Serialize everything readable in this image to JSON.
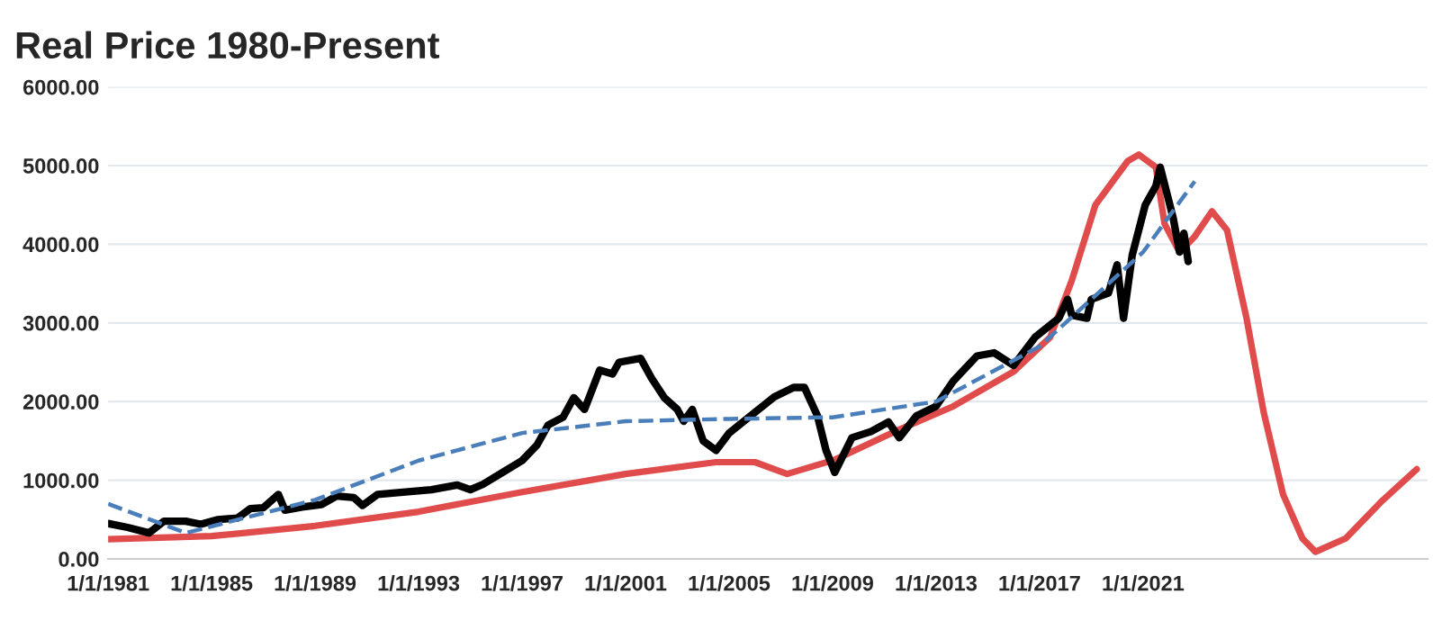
{
  "chart_data": {
    "type": "line",
    "title": "Real Price 1980-Present",
    "xlim": [
      "1981-01-01",
      "2032-01-01"
    ],
    "xticks": [
      {
        "value": "1981-01-01",
        "label": "1/1/1981"
      },
      {
        "value": "1985-01-01",
        "label": "1/1/1985"
      },
      {
        "value": "1989-01-01",
        "label": "1/1/1989"
      },
      {
        "value": "1993-01-01",
        "label": "1/1/1993"
      },
      {
        "value": "1997-01-01",
        "label": "1/1/1997"
      },
      {
        "value": "2001-01-01",
        "label": "1/1/2001"
      },
      {
        "value": "2005-01-01",
        "label": "1/1/2005"
      },
      {
        "value": "2009-01-01",
        "label": "1/1/2009"
      },
      {
        "value": "2013-01-01",
        "label": "1/1/2013"
      },
      {
        "value": "2017-01-01",
        "label": "1/1/2017"
      },
      {
        "value": "2021-01-01",
        "label": "1/1/2021"
      }
    ],
    "ylim": [
      0,
      6000
    ],
    "yticks": [
      {
        "value": 0,
        "label": "0.00"
      },
      {
        "value": 1000,
        "label": "1000.00"
      },
      {
        "value": 2000,
        "label": "2000.00"
      },
      {
        "value": 3000,
        "label": "3000.00"
      },
      {
        "value": 4000,
        "label": "4000.00"
      },
      {
        "value": 5000,
        "label": "5000.00"
      },
      {
        "value": 6000,
        "label": "6000.00"
      }
    ],
    "grid": "y",
    "series": [
      {
        "color": "#e04b4b",
        "line_style": "solid",
        "x": [
          "1981-01",
          "1985-01",
          "1989-01",
          "1993-01",
          "1997-01",
          "2001-01",
          "2004-07",
          "2006-01",
          "2007-04",
          "2009-02",
          "2011-06",
          "2013-09",
          "2016-01",
          "2017-06",
          "2018-04",
          "2019-03",
          "2020-06",
          "2020-11",
          "2021-07",
          "2021-11",
          "2022-06",
          "2023-01",
          "2023-09",
          "2024-04",
          "2025-01",
          "2025-09",
          "2026-06",
          "2027-03",
          "2027-09",
          "2028-11",
          "2030-04",
          "2031-08"
        ],
        "values": [
          250,
          290,
          420,
          600,
          850,
          1080,
          1230,
          1230,
          1080,
          1260,
          1620,
          1940,
          2380,
          2820,
          3540,
          4500,
          5060,
          5140,
          4980,
          4260,
          3900,
          4100,
          4420,
          4180,
          3060,
          1860,
          820,
          260,
          90,
          260,
          740,
          1140
        ]
      },
      {
        "color": "#000000",
        "line_style": "solid",
        "x": [
          "1981-01",
          "1981-10",
          "1982-08",
          "1983-03",
          "1984-01",
          "1984-08",
          "1985-04",
          "1986-01",
          "1986-07",
          "1987-01",
          "1987-08",
          "1987-11",
          "1988-07",
          "1989-04",
          "1989-11",
          "1990-07",
          "1990-11",
          "1991-06",
          "1992-07",
          "1993-07",
          "1994-07",
          "1995-01",
          "1995-07",
          "1996-04",
          "1997-01",
          "1997-08",
          "1998-01",
          "1998-08",
          "1999-01",
          "1999-06",
          "2000-01",
          "2000-07",
          "2000-10",
          "2001-08",
          "2002-01",
          "2002-07",
          "2003-01",
          "2003-04",
          "2003-08",
          "2004-01",
          "2004-07",
          "2005-01",
          "2005-11",
          "2006-10",
          "2007-07",
          "2007-12",
          "2008-06",
          "2008-10",
          "2009-02",
          "2009-10",
          "2010-07",
          "2011-03",
          "2011-08",
          "2012-04",
          "2013-01",
          "2013-09",
          "2014-08",
          "2015-04",
          "2016-01",
          "2016-11",
          "2017-10",
          "2018-02",
          "2018-04",
          "2018-11",
          "2019-01",
          "2019-09",
          "2020-01",
          "2020-04",
          "2020-08",
          "2021-02",
          "2021-07",
          "2021-09",
          "2022-03",
          "2022-06",
          "2022-08",
          "2022-10"
        ],
        "values": [
          450,
          400,
          330,
          480,
          480,
          440,
          500,
          520,
          640,
          650,
          820,
          620,
          660,
          690,
          800,
          780,
          680,
          820,
          850,
          880,
          940,
          880,
          950,
          1100,
          1250,
          1450,
          1700,
          1800,
          2050,
          1900,
          2400,
          2350,
          2500,
          2550,
          2300,
          2050,
          1900,
          1750,
          1900,
          1500,
          1380,
          1600,
          1820,
          2060,
          2180,
          2180,
          1820,
          1380,
          1100,
          1540,
          1620,
          1740,
          1540,
          1820,
          1940,
          2260,
          2580,
          2620,
          2460,
          2820,
          3060,
          3300,
          3100,
          3060,
          3300,
          3380,
          3740,
          3060,
          3860,
          4500,
          4740,
          4980,
          4340,
          3900,
          4140,
          3780
        ]
      },
      {
        "color": "#4a7ebb",
        "line_style": "dashed",
        "x": [
          "1981-01",
          "1984-01",
          "1989-01",
          "1993-01",
          "1997-01",
          "2001-01",
          "2005-01",
          "2009-01",
          "2013-01",
          "2017-01",
          "2021-01",
          "2023-01"
        ],
        "values": [
          700,
          330,
          750,
          1250,
          1600,
          1750,
          1780,
          1800,
          2000,
          2700,
          3900,
          4800
        ]
      }
    ]
  }
}
